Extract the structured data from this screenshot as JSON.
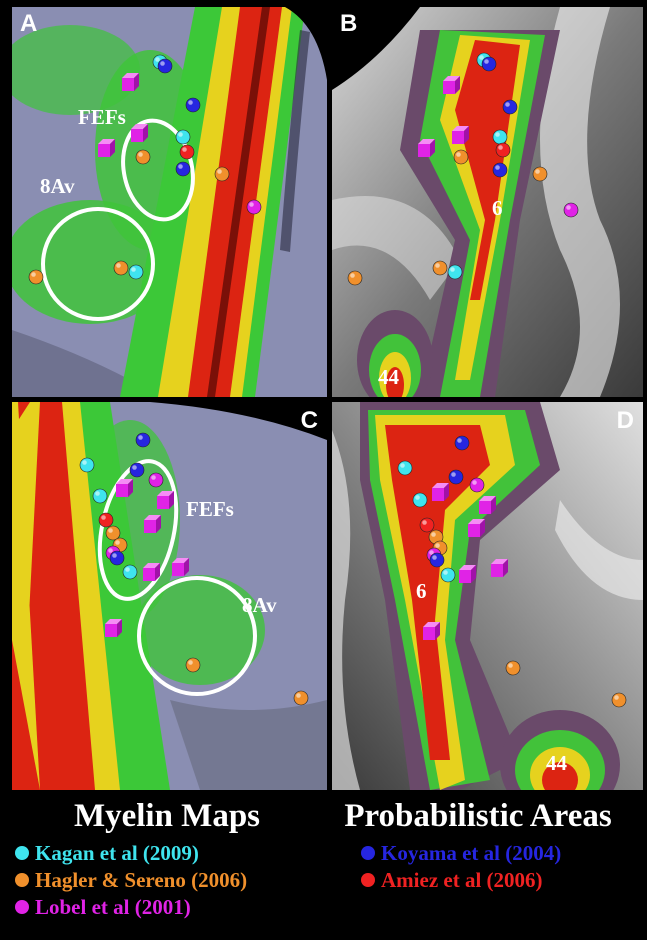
{
  "panels": [
    {
      "label": "A",
      "annotations": [
        "FEFs",
        "8Av"
      ]
    },
    {
      "label": "B",
      "annotations": [
        "6",
        "44"
      ]
    },
    {
      "label": "C",
      "annotations": [
        "FEFs",
        "8Av"
      ]
    },
    {
      "label": "D",
      "annotations": [
        "6",
        "44"
      ]
    }
  ],
  "legend": {
    "titles": [
      "Myelin Maps",
      "Probabilistic Areas"
    ],
    "entries": [
      {
        "name": "Kagan et al (2009)",
        "color": "#3fe4ee"
      },
      {
        "name": "Hagler & Sereno (2006)",
        "color": "#f0902c"
      },
      {
        "name": "Lobel et al (2001)",
        "color": "#e023e6"
      },
      {
        "name": "Koyama et al (2004)",
        "color": "#2626e0"
      },
      {
        "name": "Amiez et al (2006)",
        "color": "#f02222"
      }
    ]
  }
}
